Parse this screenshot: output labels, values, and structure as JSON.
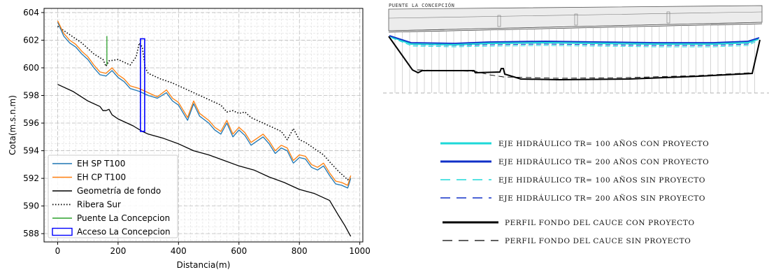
{
  "colors": {
    "eh_sp": "#1f77b4",
    "eh_cp": "#ff7f0e",
    "fondo": "#000000",
    "ribera": "#000000",
    "puente": "#2ca02c",
    "acceso": "#0000ff",
    "tr100": "#1ed8d8",
    "tr200": "#1030c8",
    "grid": "#c8c8c8"
  },
  "chart_data": [
    {
      "type": "line",
      "title": "",
      "xlabel": "Distancia(m)",
      "ylabel": "Cota(m.s.n.m)",
      "xlim": [
        -45,
        1010
      ],
      "ylim": [
        587.4,
        604.3
      ],
      "xticks": [
        0,
        200,
        400,
        600,
        800,
        1000
      ],
      "yticks": [
        588,
        590,
        592,
        594,
        596,
        598,
        600,
        602,
        604
      ],
      "grid": true,
      "legend_position": "lower-left",
      "legend": [
        "EH SP T100",
        "EH CP T100",
        "Geometría de fondo",
        "Ribera Sur",
        "Puente La Concepcion",
        "Acceso La Concepcion"
      ],
      "series": [
        {
          "name": "EH SP T100",
          "style": "solid",
          "x": [
            0,
            20,
            40,
            60,
            80,
            100,
            120,
            140,
            160,
            180,
            200,
            220,
            240,
            270,
            300,
            330,
            360,
            380,
            400,
            430,
            450,
            470,
            500,
            520,
            540,
            560,
            580,
            600,
            620,
            640,
            660,
            680,
            700,
            720,
            740,
            760,
            780,
            800,
            820,
            840,
            860,
            880,
            900,
            920,
            940,
            960,
            970
          ],
          "y": [
            603.3,
            602.3,
            601.8,
            601.5,
            601.0,
            600.6,
            600.0,
            599.5,
            599.4,
            599.8,
            599.3,
            599.0,
            598.5,
            598.3,
            598.0,
            597.8,
            598.2,
            597.6,
            597.3,
            596.2,
            597.4,
            596.5,
            596.0,
            595.5,
            595.2,
            596.0,
            595.0,
            595.5,
            595.1,
            594.4,
            594.7,
            595.0,
            594.5,
            593.8,
            594.2,
            594.0,
            593.1,
            593.5,
            593.4,
            592.8,
            592.6,
            592.9,
            592.2,
            591.6,
            591.5,
            591.3,
            592.0
          ]
        },
        {
          "name": "EH CP T100",
          "style": "solid",
          "x": [
            0,
            20,
            40,
            60,
            80,
            100,
            120,
            140,
            160,
            180,
            200,
            220,
            240,
            270,
            300,
            330,
            360,
            380,
            400,
            430,
            450,
            470,
            500,
            520,
            540,
            560,
            580,
            600,
            620,
            640,
            660,
            680,
            700,
            720,
            740,
            760,
            780,
            800,
            820,
            840,
            860,
            880,
            900,
            920,
            940,
            960,
            970
          ],
          "y": [
            603.4,
            602.5,
            602.0,
            601.7,
            601.2,
            600.8,
            600.2,
            599.7,
            599.6,
            600.0,
            599.5,
            599.2,
            598.7,
            598.5,
            598.2,
            597.9,
            598.4,
            597.8,
            597.5,
            596.4,
            597.6,
            596.7,
            596.2,
            595.7,
            595.4,
            596.2,
            595.2,
            595.7,
            595.3,
            594.6,
            594.9,
            595.2,
            594.7,
            594.0,
            594.4,
            594.2,
            593.3,
            593.7,
            593.6,
            593.0,
            592.8,
            593.1,
            592.4,
            591.8,
            591.7,
            591.5,
            592.2
          ]
        },
        {
          "name": "Geometría de fondo",
          "style": "solid",
          "x": [
            0,
            50,
            100,
            140,
            150,
            160,
            170,
            180,
            200,
            250,
            280,
            300,
            350,
            400,
            450,
            500,
            550,
            600,
            650,
            700,
            750,
            800,
            850,
            900,
            930,
            950,
            970
          ],
          "y": [
            598.8,
            598.3,
            597.6,
            597.2,
            596.9,
            596.9,
            597.0,
            596.6,
            596.3,
            595.8,
            595.4,
            595.2,
            594.9,
            594.5,
            594.0,
            593.7,
            593.3,
            592.9,
            592.6,
            592.1,
            591.7,
            591.2,
            590.9,
            590.4,
            589.3,
            588.6,
            587.8
          ]
        },
        {
          "name": "Ribera Sur",
          "style": "dotted",
          "x": [
            0,
            40,
            80,
            120,
            150,
            160,
            170,
            200,
            240,
            260,
            270,
            280,
            290,
            300,
            340,
            380,
            420,
            460,
            500,
            540,
            560,
            580,
            600,
            620,
            640,
            660,
            680,
            700,
            720,
            740,
            760,
            780,
            800,
            820,
            840,
            860,
            880,
            900,
            930,
            960,
            970
          ],
          "y": [
            603.0,
            602.4,
            601.8,
            601.0,
            600.6,
            600.1,
            600.5,
            600.6,
            600.2,
            600.8,
            601.8,
            601.5,
            600.0,
            599.6,
            599.2,
            598.9,
            598.5,
            598.1,
            597.7,
            597.3,
            596.8,
            596.9,
            596.7,
            596.8,
            596.4,
            596.2,
            596.0,
            595.8,
            595.6,
            595.4,
            594.8,
            595.6,
            594.8,
            594.6,
            594.3,
            594.0,
            593.7,
            593.2,
            592.5,
            591.9,
            592.1
          ]
        },
        {
          "name": "Puente La Concepcion",
          "style": "solid",
          "x": [
            163,
            163
          ],
          "y": [
            600.2,
            602.3
          ]
        },
        {
          "name": "Acceso La Concepcion",
          "style": "rectangle",
          "x": [
            274,
            288
          ],
          "y": [
            595.4,
            602.1
          ]
        }
      ]
    },
    {
      "type": "line",
      "title": "PUENTE LA CONCEPCIÓN",
      "legend_position": "bottom",
      "legend": [
        "EJE HIDRÁULICO TR= 100 AÑOS CON PROYECTO",
        "EJE HIDRÁULICO TR= 200 AÑOS CON PROYECTO",
        "EJE HIDRÁULICO TR= 100 AÑOS SIN PROYECTO",
        "EJE HIDRÁULICO TR= 200 AÑOS SIN PROYECTO",
        "PERFIL FONDO DEL CAUCE CON PROYECTO",
        "PERFIL FONDO DEL CAUCE SIN PROYECTO"
      ],
      "legend_styles": [
        {
          "color": "#1ed8d8",
          "dash": "solid",
          "width": 3
        },
        {
          "color": "#1030c8",
          "dash": "solid",
          "width": 3
        },
        {
          "color": "#1ed8d8",
          "dash": "long",
          "width": 1.4
        },
        {
          "color": "#1030c8",
          "dash": "long",
          "width": 1.4
        },
        {
          "color": "#000000",
          "dash": "solid",
          "width": 3
        },
        {
          "color": "#000000",
          "dash": "long",
          "width": 1.2
        }
      ]
    }
  ]
}
